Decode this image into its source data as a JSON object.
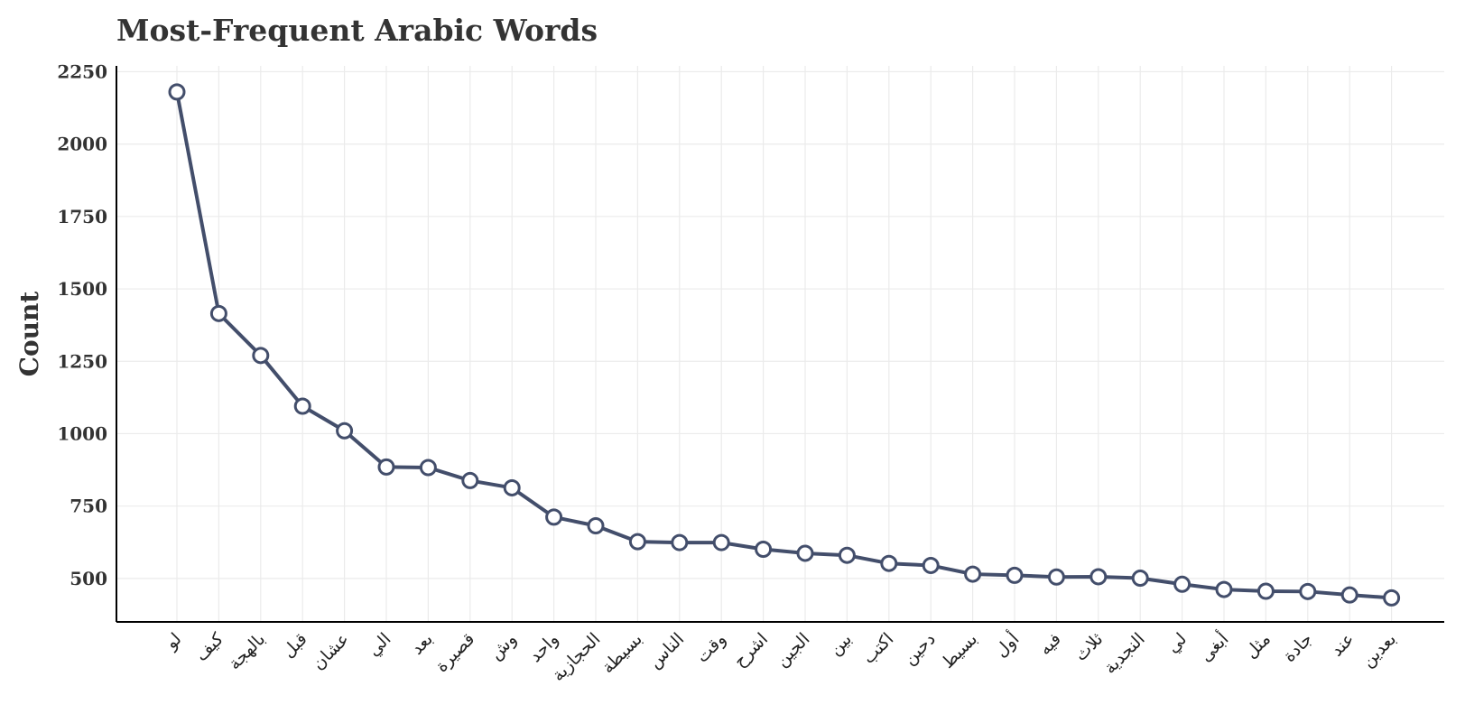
{
  "chart_data": {
    "type": "line",
    "title": "Most-Frequent Arabic Words",
    "xlabel": "",
    "ylabel": "Count",
    "categories": [
      "لو",
      "كيف",
      "بالهجة",
      "قبل",
      "عشان",
      "الي",
      "بعد",
      "قصيرة",
      "وش",
      "واحد",
      "الحجازية",
      "بسيطة",
      "الناس",
      "وقت",
      "اشرح",
      "الجين",
      "بين",
      "اكتب",
      "دحين",
      "بسيط",
      "أول",
      "فيه",
      "ثلاث",
      "النجدية",
      "لي",
      "أبغى",
      "مثل",
      "جادة",
      "عند",
      "بعدين"
    ],
    "values": [
      2180,
      1415,
      1270,
      1095,
      1010,
      885,
      883,
      838,
      813,
      712,
      682,
      627,
      624,
      624,
      601,
      587,
      580,
      552,
      545,
      515,
      511,
      505,
      506,
      501,
      480,
      462,
      456,
      455,
      443,
      433
    ],
    "ylim": [
      350,
      2270
    ],
    "yticks": [
      500,
      750,
      1000,
      1250,
      1500,
      1750,
      2000,
      2250
    ],
    "grid": true,
    "line_color": "#434e6b",
    "marker_fill": "#ffffff"
  }
}
